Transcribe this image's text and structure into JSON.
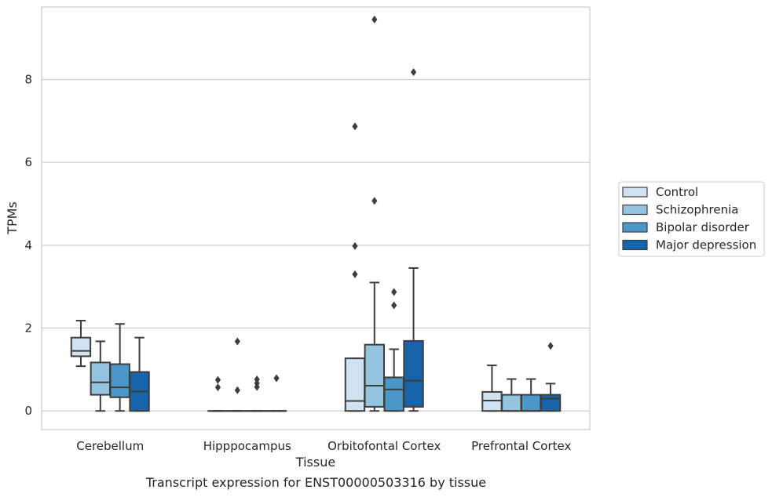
{
  "caption": "Transcript expression for ENST00000503316 by tissue",
  "chart_data": {
    "type": "boxplot",
    "xlabel": "Tissue",
    "ylabel": "TPMs",
    "ylim": [
      -0.45,
      9.75
    ],
    "yticks": [
      0,
      2,
      4,
      6,
      8
    ],
    "grid": "horizontal",
    "legend_position": "right",
    "categories": [
      "Cerebellum",
      "Hipppocampus",
      "Orbitofontal Cortex",
      "Prefrontal Cortex"
    ],
    "series": [
      {
        "name": "Control",
        "color": "#d0e1f2",
        "boxes": [
          {
            "whislo": 1.08,
            "q1": 1.32,
            "med": 1.45,
            "q3": 1.77,
            "whishi": 2.18,
            "fliers": []
          },
          {
            "whislo": 0,
            "q1": 0,
            "med": 0,
            "q3": 0,
            "whishi": 0,
            "fliers": [
              0.57,
              0.75
            ]
          },
          {
            "whislo": 0,
            "q1": 0,
            "med": 0.24,
            "q3": 1.27,
            "whishi": 1.27,
            "fliers": [
              3.3,
              3.98,
              6.87
            ]
          },
          {
            "whislo": 0,
            "q1": 0,
            "med": 0.25,
            "q3": 0.46,
            "whishi": 1.1,
            "fliers": []
          }
        ]
      },
      {
        "name": "Schizophrenia",
        "color": "#94c4df",
        "boxes": [
          {
            "whislo": 0,
            "q1": 0.39,
            "med": 0.69,
            "q3": 1.17,
            "whishi": 1.68,
            "fliers": []
          },
          {
            "whislo": 0,
            "q1": 0,
            "med": 0,
            "q3": 0,
            "whishi": 0,
            "fliers": [
              0.5,
              1.68
            ]
          },
          {
            "whislo": 0,
            "q1": 0.1,
            "med": 0.61,
            "q3": 1.6,
            "whishi": 3.1,
            "fliers": [
              5.07,
              9.45
            ]
          },
          {
            "whislo": 0,
            "q1": 0,
            "med": 0,
            "q3": 0.39,
            "whishi": 0.77,
            "fliers": []
          }
        ]
      },
      {
        "name": "Bipolar disorder",
        "color": "#4a98c9",
        "boxes": [
          {
            "whislo": 0,
            "q1": 0.33,
            "med": 0.57,
            "q3": 1.13,
            "whishi": 2.1,
            "fliers": []
          },
          {
            "whislo": 0,
            "q1": 0,
            "med": 0,
            "q3": 0,
            "whishi": 0,
            "fliers": [
              0.58,
              0.67,
              0.76
            ]
          },
          {
            "whislo": 0,
            "q1": 0,
            "med": 0.52,
            "q3": 0.81,
            "whishi": 1.49,
            "fliers": [
              2.55,
              2.87
            ]
          },
          {
            "whislo": 0,
            "q1": 0,
            "med": 0,
            "q3": 0.39,
            "whishi": 0.77,
            "fliers": []
          }
        ]
      },
      {
        "name": "Major depression",
        "color": "#1764ab",
        "boxes": [
          {
            "whislo": 0,
            "q1": 0,
            "med": 0.47,
            "q3": 0.94,
            "whishi": 1.77,
            "fliers": []
          },
          {
            "whislo": 0,
            "q1": 0,
            "med": 0,
            "q3": 0,
            "whishi": 0,
            "fliers": [
              0.79
            ]
          },
          {
            "whislo": 0,
            "q1": 0.1,
            "med": 0.73,
            "q3": 1.69,
            "whishi": 3.45,
            "fliers": [
              8.18
            ]
          },
          {
            "whislo": 0,
            "q1": 0,
            "med": 0.3,
            "q3": 0.39,
            "whishi": 0.66,
            "fliers": [
              1.57
            ]
          }
        ]
      }
    ]
  }
}
